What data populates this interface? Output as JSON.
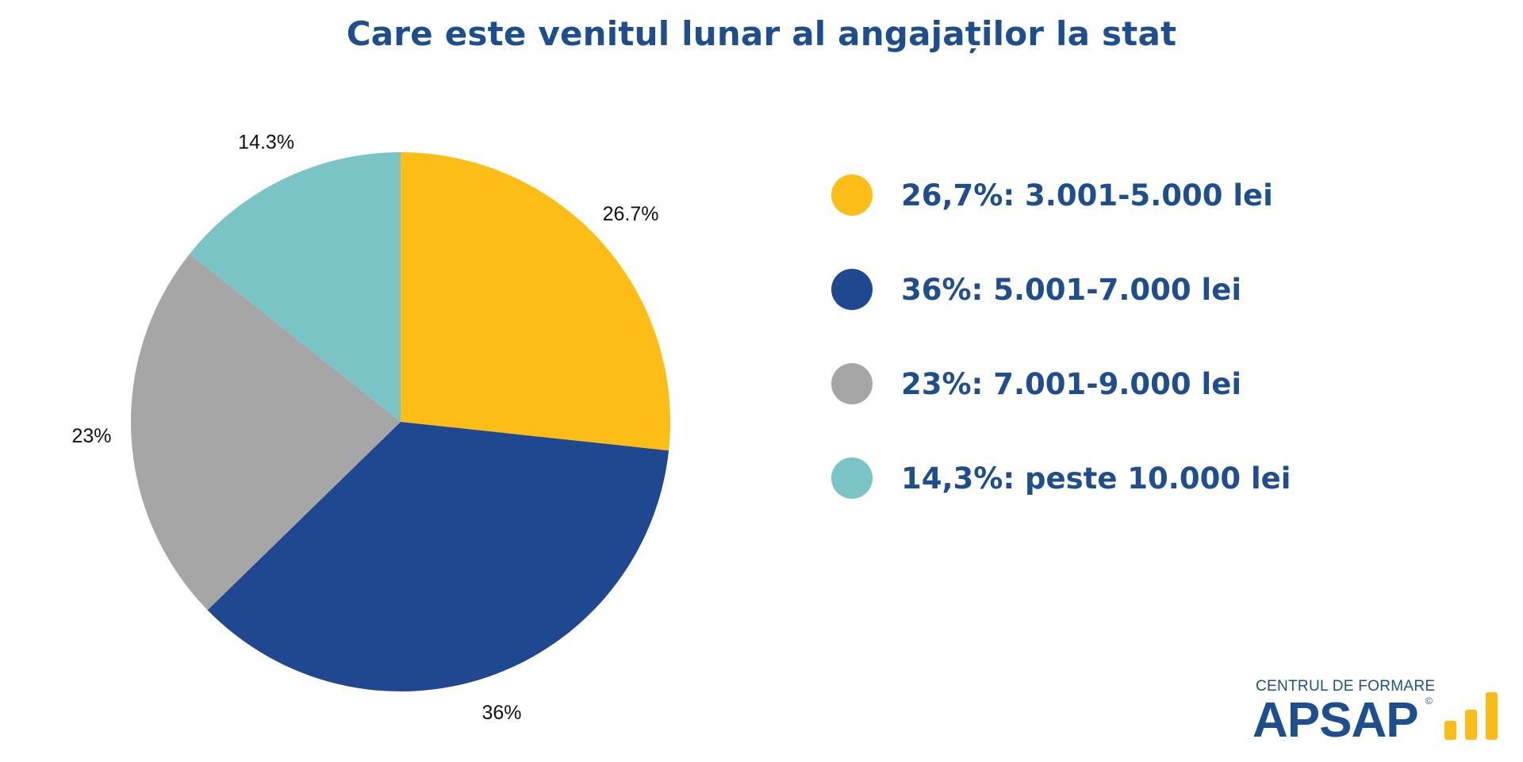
{
  "title": "Care este venitul lunar al angajaților la stat",
  "chart_data": {
    "type": "pie",
    "title": "Care este venitul lunar al angajaților la stat",
    "categories": [
      "26,7%: 3.001-5.000 lei",
      "36%: 5.001-7.000 lei",
      "23%: 7.001-9.000 lei",
      "14,3%: peste 10.000 lei"
    ],
    "values": [
      26.7,
      36,
      23,
      14.3
    ],
    "slice_labels": [
      "26.7%",
      "36%",
      "23%",
      "14.3%"
    ],
    "colors": [
      "#fbbd16",
      "#1f4891",
      "#a6a6a6",
      "#7ac4c6"
    ],
    "legend_placement": "right"
  },
  "legend": [
    {
      "label": "26,7%: 3.001-5.000 lei",
      "color": "#fbbd16"
    },
    {
      "label": "36%: 5.001-7.000 lei",
      "color": "#1f4891"
    },
    {
      "label": "23%: 7.001-9.000 lei",
      "color": "#a6a6a6"
    },
    {
      "label": "14,3%: peste 10.000 lei",
      "color": "#7ac4c6"
    }
  ],
  "logo": {
    "top_text": "CENTRUL DE FORMARE",
    "main_text": "APSAP",
    "mark": "©",
    "color": "#1f4e8f",
    "accent_color": "#fbbd16"
  }
}
